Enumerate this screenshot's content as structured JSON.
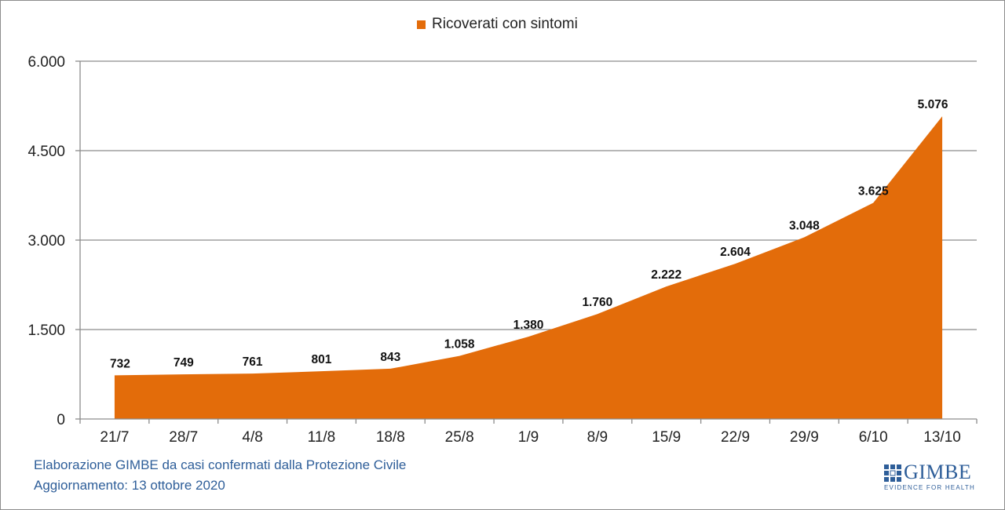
{
  "chart_data": {
    "type": "area",
    "categories": [
      "21/7",
      "28/7",
      "4/8",
      "11/8",
      "18/8",
      "25/8",
      "1/9",
      "8/9",
      "15/9",
      "22/9",
      "29/9",
      "6/10",
      "13/10"
    ],
    "series": [
      {
        "name": "Ricoverati con sintomi",
        "values": [
          732,
          749,
          761,
          801,
          843,
          1058,
          1380,
          1760,
          2222,
          2604,
          3048,
          3625,
          5076
        ]
      }
    ],
    "data_labels": [
      "732",
      "749",
      "761",
      "801",
      "843",
      "1.058",
      "1.380",
      "1.760",
      "2.222",
      "2.604",
      "3.048",
      "3.625",
      "5.076"
    ],
    "ylim": [
      0,
      6000
    ],
    "yticks": [
      0,
      1500,
      3000,
      4500,
      6000
    ],
    "ytick_labels": [
      "0",
      "1.500",
      "3.000",
      "4.500",
      "6.000"
    ],
    "grid": true,
    "legend_position": "top-center",
    "color": "#E36C0A"
  },
  "footer": {
    "line1": "Elaborazione GIMBE da casi confermati dalla Protezione Civile",
    "line2": "Aggiornamento: 13 ottobre 2020"
  },
  "logo": {
    "text": "GIMBE",
    "tagline": "EVIDENCE FOR HEALTH"
  }
}
